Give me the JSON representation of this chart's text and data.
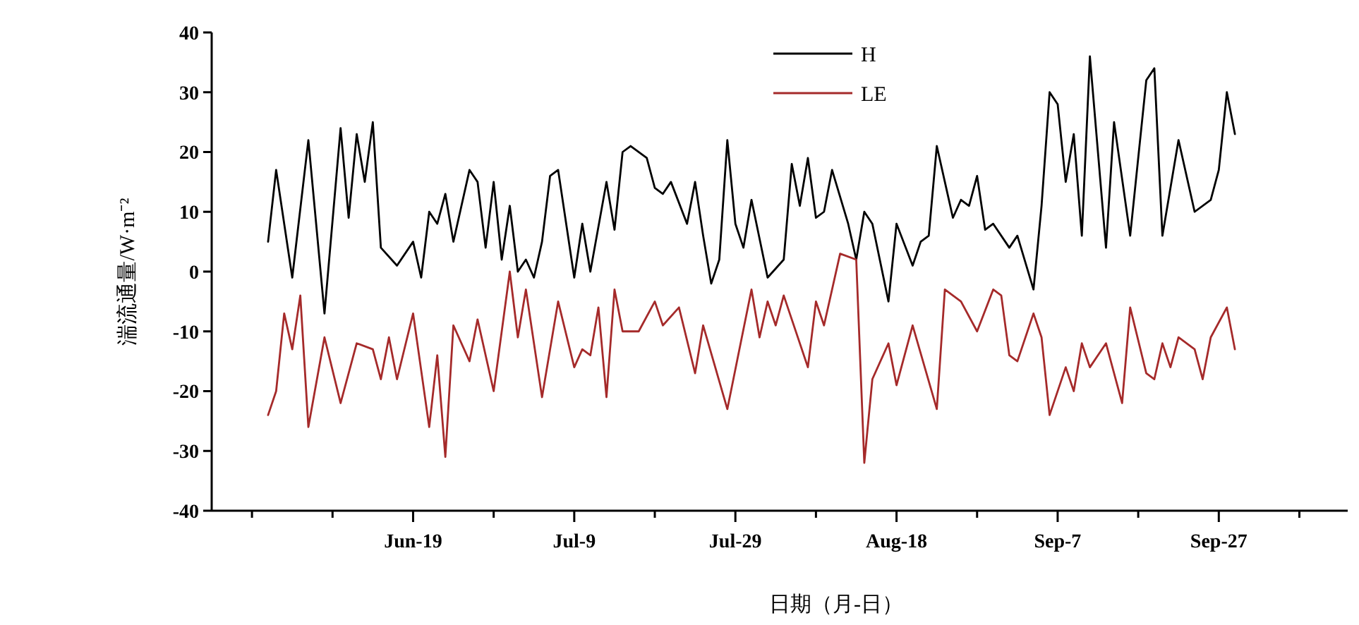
{
  "chart_data": {
    "type": "line",
    "xlabel": "日期（月-日）",
    "ylabel": "湍流通量/W·m⁻²",
    "legend": "top",
    "marker": "none",
    "line_style": "solid",
    "grid": false,
    "xlim": [
      "--05-25",
      "--10-13"
    ],
    "xticks": [
      {
        "value": "--05-30",
        "label": null
      },
      {
        "value": "--06-09",
        "label": null
      },
      {
        "value": "--06-19",
        "label": "Jun-19"
      },
      {
        "value": "--06-29",
        "label": null
      },
      {
        "value": "--07-09",
        "label": "Jul-9"
      },
      {
        "value": "--07-19",
        "label": null
      },
      {
        "value": "--07-29",
        "label": "Jul-29"
      },
      {
        "value": "--08-08",
        "label": null
      },
      {
        "value": "--08-18",
        "label": "Aug-18"
      },
      {
        "value": "--08-28",
        "label": null
      },
      {
        "value": "--09-07",
        "label": "Sep-7"
      },
      {
        "value": "--09-17",
        "label": null
      },
      {
        "value": "--09-27",
        "label": "Sep-27"
      },
      {
        "value": "--10-07",
        "label": null
      }
    ],
    "ylim": [
      -40,
      40
    ],
    "yticks": [
      -40,
      -30,
      -20,
      -10,
      0,
      10,
      20,
      30,
      40
    ],
    "series": [
      {
        "name": "H",
        "color": "#000000",
        "x": [
          "--06-01",
          "--06-02",
          "--06-04",
          "--06-06",
          "--06-08",
          "--06-10",
          "--06-11",
          "--06-12",
          "--06-13",
          "--06-14",
          "--06-15",
          "--06-17",
          "--06-19",
          "--06-20",
          "--06-21",
          "--06-22",
          "--06-23",
          "--06-24",
          "--06-26",
          "--06-27",
          "--06-28",
          "--06-29",
          "--06-30",
          "--07-01",
          "--07-02",
          "--07-03",
          "--07-04",
          "--07-05",
          "--07-06",
          "--07-07",
          "--07-09",
          "--07-10",
          "--07-11",
          "--07-13",
          "--07-14",
          "--07-15",
          "--07-16",
          "--07-18",
          "--07-19",
          "--07-20",
          "--07-21",
          "--07-23",
          "--07-24",
          "--07-25",
          "--07-26",
          "--07-27",
          "--07-28",
          "--07-29",
          "--07-30",
          "--07-31",
          "--08-02",
          "--08-04",
          "--08-05",
          "--08-06",
          "--08-07",
          "--08-08",
          "--08-09",
          "--08-10",
          "--08-12",
          "--08-13",
          "--08-14",
          "--08-15",
          "--08-17",
          "--08-18",
          "--08-20",
          "--08-21",
          "--08-22",
          "--08-23",
          "--08-24",
          "--08-25",
          "--08-26",
          "--08-27",
          "--08-28",
          "--08-29",
          "--08-30",
          "--09-01",
          "--09-02",
          "--09-04",
          "--09-05",
          "--09-06",
          "--09-07",
          "--09-08",
          "--09-09",
          "--09-10",
          "--09-11",
          "--09-13",
          "--09-14",
          "--09-16",
          "--09-18",
          "--09-19",
          "--09-20",
          "--09-22",
          "--09-24",
          "--09-26",
          "--09-27",
          "--09-28",
          "--09-29"
        ],
        "values": [
          5,
          17,
          -1,
          22,
          -7,
          24,
          9,
          23,
          15,
          25,
          4,
          1,
          5,
          -1,
          10,
          8,
          13,
          5,
          17,
          15,
          4,
          15,
          2,
          11,
          0,
          2,
          -1,
          5,
          16,
          17,
          -1,
          8,
          0,
          15,
          7,
          20,
          21,
          19,
          14,
          13,
          15,
          8,
          15,
          6,
          -2,
          2,
          22,
          8,
          4,
          12,
          -1,
          2,
          18,
          11,
          19,
          9,
          10,
          17,
          8,
          2,
          10,
          8,
          -5,
          8,
          1,
          5,
          6,
          21,
          15,
          9,
          12,
          11,
          16,
          7,
          8,
          4,
          6,
          -3,
          11,
          30,
          28,
          15,
          23,
          6,
          36,
          4,
          25,
          6,
          32,
          34,
          6,
          22,
          10,
          12,
          17,
          30,
          23
        ]
      },
      {
        "name": "LE",
        "color": "#a52a2a",
        "x": [
          "--06-01",
          "--06-02",
          "--06-03",
          "--06-04",
          "--06-05",
          "--06-06",
          "--06-08",
          "--06-10",
          "--06-12",
          "--06-14",
          "--06-15",
          "--06-16",
          "--06-17",
          "--06-19",
          "--06-21",
          "--06-22",
          "--06-23",
          "--06-24",
          "--06-26",
          "--06-27",
          "--06-29",
          "--07-01",
          "--07-02",
          "--07-03",
          "--07-05",
          "--07-07",
          "--07-09",
          "--07-10",
          "--07-11",
          "--07-12",
          "--07-13",
          "--07-14",
          "--07-15",
          "--07-17",
          "--07-19",
          "--07-20",
          "--07-22",
          "--07-24",
          "--07-25",
          "--07-28",
          "--07-31",
          "--08-01",
          "--08-02",
          "--08-03",
          "--08-04",
          "--08-07",
          "--08-08",
          "--08-09",
          "--08-11",
          "--08-13",
          "--08-14",
          "--08-15",
          "--08-17",
          "--08-18",
          "--08-20",
          "--08-23",
          "--08-24",
          "--08-26",
          "--08-28",
          "--08-30",
          "--08-31",
          "--09-01",
          "--09-02",
          "--09-04",
          "--09-05",
          "--09-06",
          "--09-08",
          "--09-09",
          "--09-10",
          "--09-11",
          "--09-13",
          "--09-15",
          "--09-16",
          "--09-18",
          "--09-19",
          "--09-20",
          "--09-21",
          "--09-22",
          "--09-24",
          "--09-25",
          "--09-26",
          "--09-28",
          "--09-29"
        ],
        "values": [
          -24,
          -20,
          -7,
          -13,
          -4,
          -26,
          -11,
          -22,
          -12,
          -13,
          -18,
          -11,
          -18,
          -7,
          -26,
          -14,
          -31,
          -9,
          -15,
          -8,
          -20,
          0,
          -11,
          -3,
          -21,
          -5,
          -16,
          -13,
          -14,
          -6,
          -21,
          -3,
          -10,
          -10,
          -5,
          -9,
          -6,
          -17,
          -9,
          -23,
          -3,
          -11,
          -5,
          -9,
          -4,
          -16,
          -5,
          -9,
          3,
          2,
          -32,
          -18,
          -12,
          -19,
          -9,
          -23,
          -3,
          -5,
          -10,
          -3,
          -4,
          -14,
          -15,
          -7,
          -11,
          -24,
          -16,
          -20,
          -12,
          -16,
          -12,
          -22,
          -6,
          -17,
          -18,
          -12,
          -16,
          -11,
          -13,
          -18,
          -11,
          -6,
          -13
        ]
      }
    ]
  }
}
